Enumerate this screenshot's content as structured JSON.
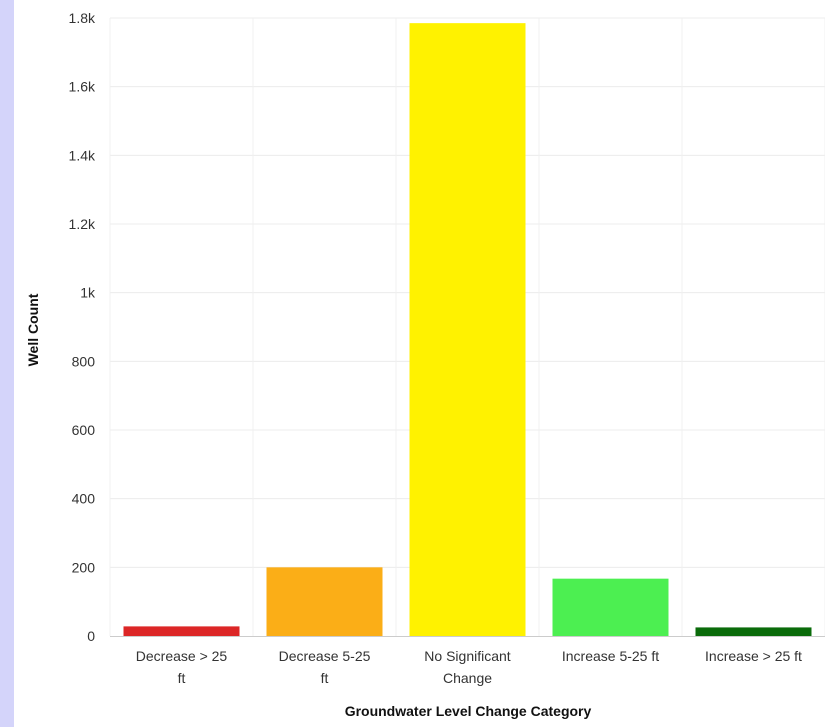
{
  "chart_data": {
    "type": "bar",
    "categories": [
      [
        "Decrease > 25",
        "ft"
      ],
      [
        "Decrease 5-25",
        "ft"
      ],
      [
        "No Significant",
        "Change"
      ],
      [
        "Increase 5-25 ft"
      ],
      [
        "Increase > 25 ft"
      ]
    ],
    "values": [
      28,
      200,
      1785,
      167,
      25
    ],
    "colors": [
      "#dc2626",
      "#fbae17",
      "#fff200",
      "#4cef51",
      "#0a6b0a"
    ],
    "xlabel": "Groundwater Level Change Category",
    "ylabel": "Well Count",
    "ylim": [
      0,
      1800
    ],
    "yticks": [
      0,
      200,
      400,
      600,
      800,
      1000,
      1200,
      1400,
      1600,
      1800
    ],
    "ytick_labels": [
      "0",
      "200",
      "400",
      "600",
      "800",
      "1k",
      "1.2k",
      "1.4k",
      "1.6k",
      "1.8k"
    ],
    "grid": true
  }
}
